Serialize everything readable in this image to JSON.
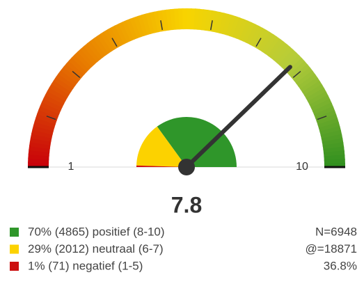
{
  "chart_data": {
    "type": "gauge",
    "value": 7.8,
    "ylim": [
      1,
      10
    ],
    "yticks": [
      1,
      10
    ],
    "minor_yticks": [
      2,
      3,
      4,
      5,
      6,
      7,
      8,
      9
    ],
    "series": [
      {
        "name": "70% (4865) positief (8-10)",
        "color": "#2f962a",
        "value": 70
      },
      {
        "name": "29% (2012) neutraal (6-7)",
        "color": "#fcd200",
        "value": 29
      },
      {
        "name": "1% (71) negatief (1-5)",
        "color": "#cc1111",
        "value": 1
      }
    ],
    "notes": [
      "N=6948",
      "@=18871",
      "36.8%"
    ]
  }
}
